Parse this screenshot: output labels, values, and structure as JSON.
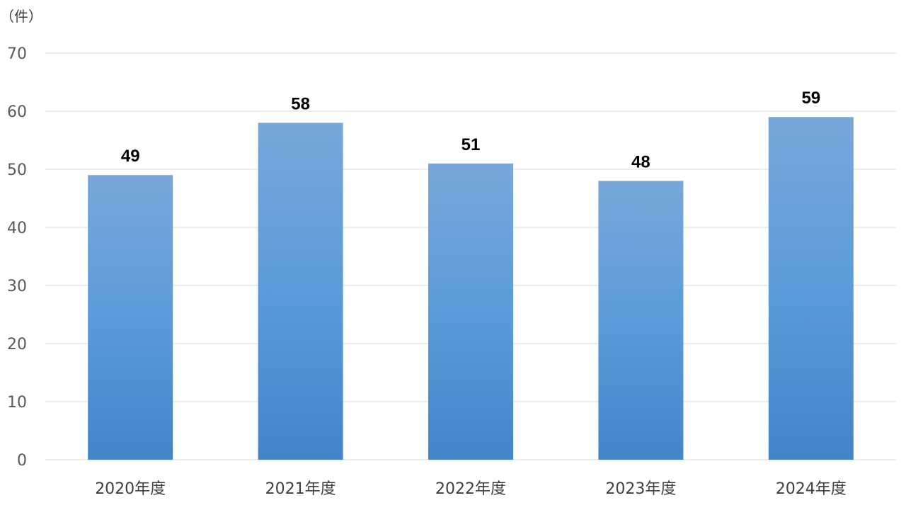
{
  "chart_data": {
    "type": "bar",
    "unit_label": "（件）",
    "categories": [
      "2020年度",
      "2021年度",
      "2022年度",
      "2023年度",
      "2024年度"
    ],
    "values": [
      49,
      58,
      51,
      48,
      59
    ],
    "ylim": [
      0,
      70
    ],
    "yticks": [
      "0",
      "10",
      "20",
      "30",
      "40",
      "50",
      "60",
      "70"
    ],
    "grid": true,
    "colors": {
      "bar_top": "#78a7da",
      "bar_bottom": "#4285c8",
      "grid": "#d9d9d9"
    }
  }
}
